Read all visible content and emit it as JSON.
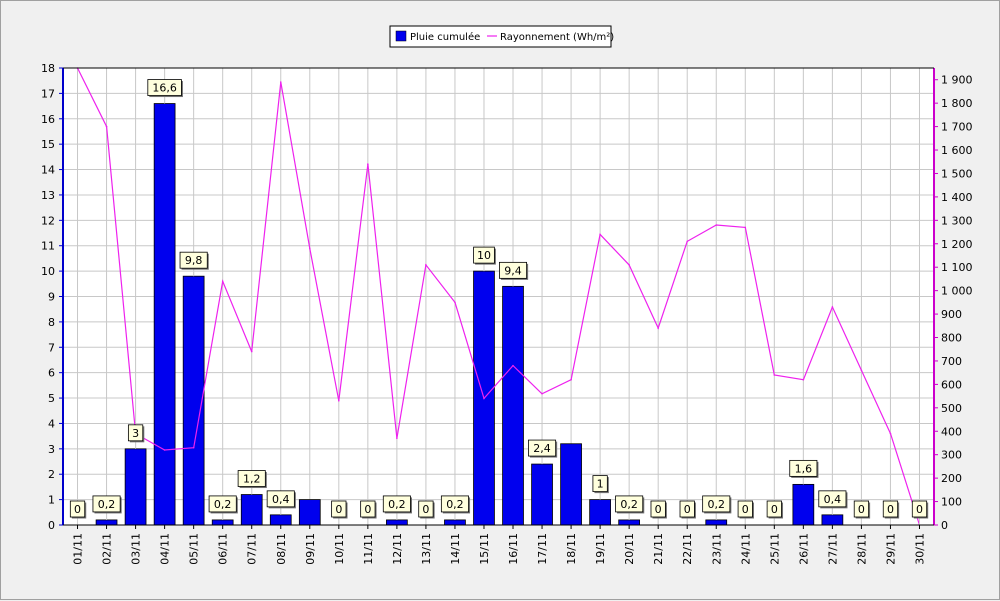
{
  "chart_data": {
    "type": "bar+line",
    "categories": [
      "01/11",
      "02/11",
      "03/11",
      "04/11",
      "05/11",
      "06/11",
      "07/11",
      "08/11",
      "09/11",
      "10/11",
      "11/11",
      "12/11",
      "13/11",
      "14/11",
      "15/11",
      "16/11",
      "17/11",
      "18/11",
      "19/11",
      "20/11",
      "21/11",
      "22/11",
      "23/11",
      "24/11",
      "25/11",
      "26/11",
      "27/11",
      "28/11",
      "29/11",
      "30/11"
    ],
    "series": [
      {
        "name": "Pluie cumulée",
        "type": "bar",
        "axis": "left",
        "color": "#0000ee",
        "values": [
          0,
          0.2,
          3,
          16.6,
          9.8,
          0.2,
          1.2,
          0.4,
          1,
          0,
          0,
          0.2,
          0,
          0.2,
          10,
          9.4,
          2.4,
          3.2,
          1,
          0.2,
          0,
          0,
          0.2,
          0,
          0,
          1.6,
          0.4,
          0,
          0,
          0
        ],
        "labels": [
          "0",
          "0,2",
          "3",
          "16,6",
          "9,8",
          "0,2",
          "1,2",
          "0,4",
          null,
          "0",
          "0",
          "0,2",
          "0",
          "0,2",
          "10",
          "9,4",
          "2,4",
          null,
          "1",
          "0,2",
          "0",
          "0",
          "0,2",
          "0",
          "0",
          "1,6",
          "0,4",
          "0",
          "0",
          "0"
        ]
      },
      {
        "name": "Rayonnement (Wh/m²)",
        "type": "line",
        "axis": "right",
        "color": "#ee22ee",
        "values": [
          1950,
          1700,
          390,
          320,
          330,
          1040,
          740,
          1890,
          1180,
          530,
          1540,
          370,
          1110,
          950,
          540,
          680,
          560,
          620,
          1240,
          1110,
          840,
          1210,
          1280,
          1270,
          640,
          620,
          930,
          660,
          390,
          0
        ]
      }
    ],
    "y_left": {
      "min": 0,
      "max": 18,
      "ticks": [
        "0",
        "1",
        "2",
        "3",
        "4",
        "5",
        "6",
        "7",
        "8",
        "9",
        "10",
        "11",
        "12",
        "13",
        "14",
        "15",
        "16",
        "17",
        "18"
      ]
    },
    "y_right": {
      "min": 0,
      "max": 1950,
      "ticks": [
        "0",
        "100",
        "200",
        "300",
        "400",
        "500",
        "600",
        "700",
        "800",
        "900",
        "1 000",
        "1 100",
        "1 200",
        "1 300",
        "1 400",
        "1 500",
        "1 600",
        "1 700",
        "1 800",
        "1 900"
      ]
    },
    "grid": true,
    "legend_position": "top-center",
    "colors": {
      "plot_bg": "#ffffff",
      "grid": "#c8c8c8",
      "left_axis": "#0000cc",
      "right_axis": "#cc00cc",
      "label_bg": "#ffffdd"
    }
  }
}
